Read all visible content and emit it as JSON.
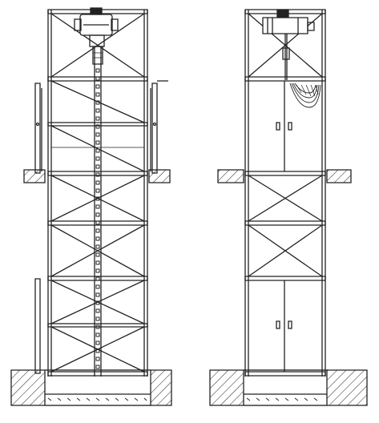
{
  "diagram": {
    "views": [
      {
        "id": "front",
        "description_visible_text": ""
      },
      {
        "id": "side",
        "description_visible_text": ""
      }
    ],
    "colors": {
      "line": "#222222",
      "background": "#ffffff"
    },
    "icons": [
      "hoist-motor",
      "cable-drum",
      "guide-rail",
      "cabinet-door",
      "door-handle",
      "concrete-foundation",
      "floor-slab"
    ]
  }
}
